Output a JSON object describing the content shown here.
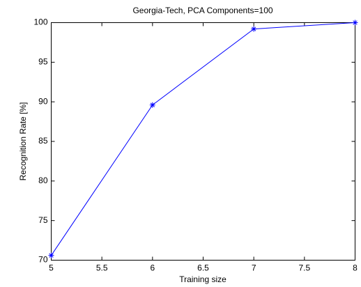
{
  "chart_data": {
    "type": "line",
    "title": "Georgia-Tech, PCA Components=100",
    "x_label": "Training size",
    "y_label": "Recognition Rate [%]",
    "x": [
      5,
      6,
      7,
      8
    ],
    "values": [
      70.6,
      89.6,
      99.2,
      100
    ],
    "color": "#0000ff",
    "xlim": [
      5,
      8
    ],
    "xticks": [
      5,
      5.5,
      6,
      6.5,
      7,
      7.5,
      8
    ],
    "ylim": [
      70,
      100
    ],
    "yticks": [
      70,
      75,
      80,
      85,
      90,
      95,
      100
    ],
    "grid": false
  }
}
